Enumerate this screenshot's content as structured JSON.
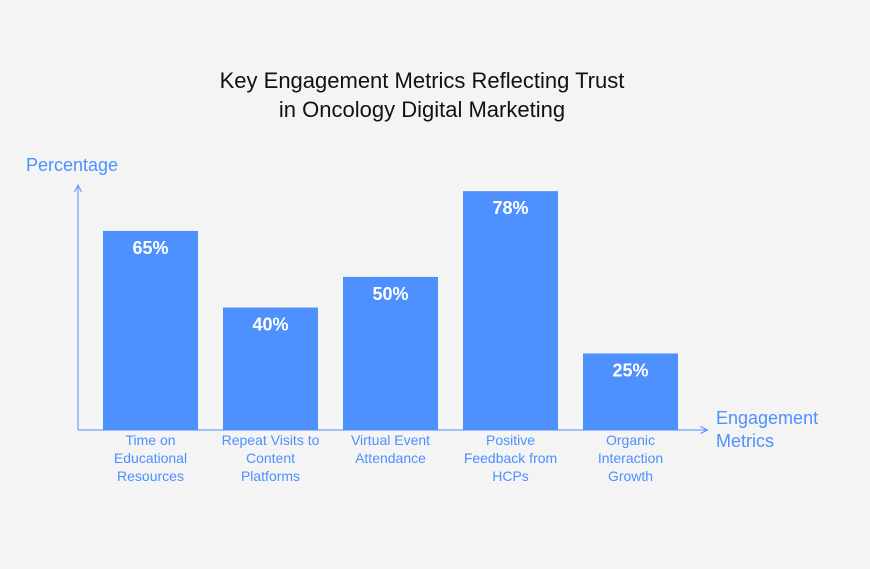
{
  "chart_data": {
    "type": "bar",
    "title": [
      "Key Engagement Metrics Reflecting Trust",
      "in Oncology Digital Marketing"
    ],
    "ylabel": "Percentage",
    "xlabel": [
      "Engagement",
      "Metrics"
    ],
    "ylim": [
      0,
      100
    ],
    "grid": false,
    "legend": "none",
    "categories": [
      [
        "Time on",
        "Educational",
        "Resources"
      ],
      [
        "Repeat Visits to",
        "Content",
        "Platforms"
      ],
      [
        "Virtual Event",
        "Attendance"
      ],
      [
        "Positive",
        "Feedback from",
        "HCPs"
      ],
      [
        "Organic",
        "Interaction",
        "Growth"
      ]
    ],
    "values": [
      65,
      40,
      50,
      78,
      25
    ],
    "value_labels": [
      "65%",
      "40%",
      "50%",
      "78%",
      "25%"
    ]
  },
  "colors": {
    "bar": "#4d90fe",
    "axis": "#4d90fe",
    "background": "#f4f4f4",
    "title": "#111111"
  }
}
